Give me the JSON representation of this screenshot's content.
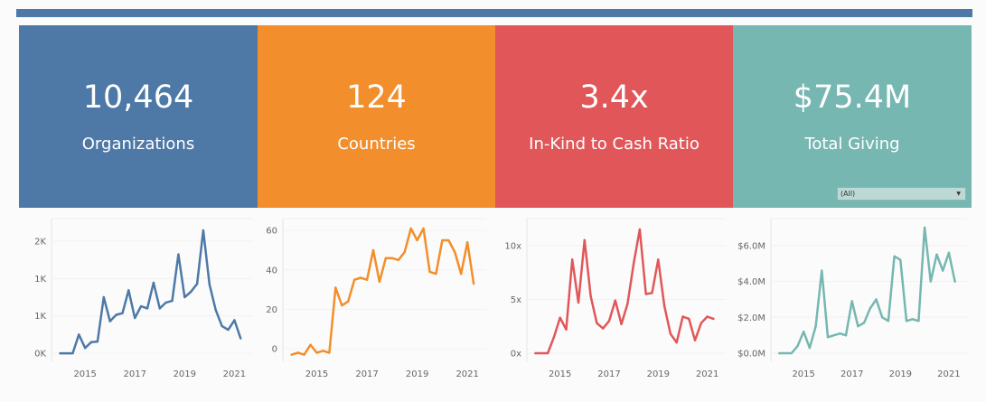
{
  "kpis": [
    {
      "value": "10,464",
      "label": "Organizations",
      "color": "#4e79a7"
    },
    {
      "value": "124",
      "label": "Countries",
      "color": "#f28e2b"
    },
    {
      "value": "3.4x",
      "label": "In-Kind to Cash Ratio",
      "color": "#e15759"
    },
    {
      "value": "$75.4M",
      "label": "Total Giving",
      "color": "#76b7b2"
    }
  ],
  "filter": {
    "selected": "(All)"
  },
  "chart_data": [
    {
      "type": "line",
      "color": "#4e79a7",
      "x": [
        2014.0,
        2014.25,
        2014.5,
        2014.75,
        2015.0,
        2015.25,
        2015.5,
        2015.75,
        2016.0,
        2016.25,
        2016.5,
        2016.75,
        2017.0,
        2017.25,
        2017.5,
        2017.75,
        2018.0,
        2018.25,
        2018.5,
        2018.75,
        2019.0,
        2019.25,
        2019.5,
        2019.75,
        2020.0,
        2020.25,
        2020.5,
        2020.75,
        2021.0,
        2021.25
      ],
      "y": [
        0,
        0,
        0,
        350,
        100,
        210,
        220,
        1050,
        600,
        720,
        750,
        1180,
        660,
        880,
        840,
        1320,
        840,
        950,
        980,
        1850,
        1050,
        1150,
        1300,
        2300,
        1290,
        810,
        510,
        440,
        620,
        280
      ],
      "yticks": [
        0,
        700,
        1400,
        2100
      ],
      "ytick_labels": [
        "0K",
        "1K",
        "1K",
        "2K"
      ],
      "ylim": [
        -100,
        2520
      ],
      "xticks": [
        2015,
        2017,
        2019,
        2021
      ],
      "xtick_labels": [
        "2015",
        "2017",
        "2019",
        "2021"
      ],
      "xlim": [
        2013.65,
        2021.75
      ]
    },
    {
      "type": "line",
      "color": "#f28e2b",
      "x": [
        2014.0,
        2014.25,
        2014.5,
        2014.75,
        2015.0,
        2015.25,
        2015.5,
        2015.75,
        2016.0,
        2016.25,
        2016.5,
        2016.75,
        2017.0,
        2017.25,
        2017.5,
        2017.75,
        2018.0,
        2018.25,
        2018.5,
        2018.75,
        2019.0,
        2019.25,
        2019.5,
        2019.75,
        2020.0,
        2020.25,
        2020.5,
        2020.75,
        2021.0,
        2021.25
      ],
      "y": [
        -3,
        -2,
        -3,
        2,
        -2,
        -1,
        -2,
        31,
        22,
        24,
        35,
        36,
        35,
        50,
        34,
        46,
        46,
        45,
        49,
        61,
        55,
        61,
        39,
        38,
        55,
        55,
        49,
        38,
        54,
        33
      ],
      "yticks": [
        0,
        20,
        40,
        60
      ],
      "ytick_labels": [
        "0",
        "20",
        "40",
        "60"
      ],
      "ylim": [
        -5,
        66
      ],
      "xticks": [
        2015,
        2017,
        2019,
        2021
      ],
      "xtick_labels": [
        "2015",
        "2017",
        "2019",
        "2021"
      ],
      "xlim": [
        2013.65,
        2021.75
      ]
    },
    {
      "type": "line",
      "color": "#e15759",
      "x": [
        2014.0,
        2014.25,
        2014.5,
        2014.75,
        2015.0,
        2015.25,
        2015.5,
        2015.75,
        2016.0,
        2016.25,
        2016.5,
        2016.75,
        2017.0,
        2017.25,
        2017.5,
        2017.75,
        2018.0,
        2018.25,
        2018.5,
        2018.75,
        2019.0,
        2019.25,
        2019.5,
        2019.75,
        2020.0,
        2020.25,
        2020.5,
        2020.75,
        2021.0,
        2021.25
      ],
      "y": [
        0,
        0,
        0,
        1.5,
        3.3,
        2.2,
        8.7,
        4.7,
        10.5,
        5.3,
        2.8,
        2.3,
        3.0,
        4.9,
        2.7,
        4.6,
        8.3,
        11.5,
        5.5,
        5.6,
        8.7,
        4.4,
        1.8,
        1.0,
        3.4,
        3.2,
        1.2,
        2.8,
        3.4,
        3.2
      ],
      "yticks": [
        0,
        5,
        10
      ],
      "ytick_labels": [
        "0x",
        "5x",
        "10x"
      ],
      "ylim": [
        -0.5,
        12.5
      ],
      "xticks": [
        2015,
        2017,
        2019,
        2021
      ],
      "xtick_labels": [
        "2015",
        "2017",
        "2019",
        "2021"
      ],
      "xlim": [
        2013.65,
        2021.75
      ]
    },
    {
      "type": "line",
      "color": "#76b7b2",
      "x": [
        2014.0,
        2014.25,
        2014.5,
        2014.75,
        2015.0,
        2015.25,
        2015.5,
        2015.75,
        2016.0,
        2016.25,
        2016.5,
        2016.75,
        2017.0,
        2017.25,
        2017.5,
        2017.75,
        2018.0,
        2018.25,
        2018.5,
        2018.75,
        2019.0,
        2019.25,
        2019.5,
        2019.75,
        2020.0,
        2020.25,
        2020.5,
        2020.75,
        2021.0,
        2021.25
      ],
      "y": [
        0,
        0,
        0,
        0.4,
        1.2,
        0.3,
        1.5,
        4.6,
        0.9,
        1.0,
        1.1,
        1.0,
        2.9,
        1.5,
        1.7,
        2.5,
        3.0,
        2.0,
        1.8,
        5.4,
        5.2,
        1.8,
        1.9,
        1.8,
        7.0,
        4.0,
        5.5,
        4.6,
        5.6,
        4.0
      ],
      "yticks": [
        0,
        2,
        4,
        6
      ],
      "ytick_labels": [
        "$0.0M",
        "$2.0M",
        "$4.0M",
        "$6.0M"
      ],
      "ylim": [
        -0.3,
        7.5
      ],
      "xticks": [
        2015,
        2017,
        2019,
        2021
      ],
      "xtick_labels": [
        "2015",
        "2017",
        "2019",
        "2021"
      ],
      "xlim": [
        2013.65,
        2021.75
      ]
    }
  ]
}
